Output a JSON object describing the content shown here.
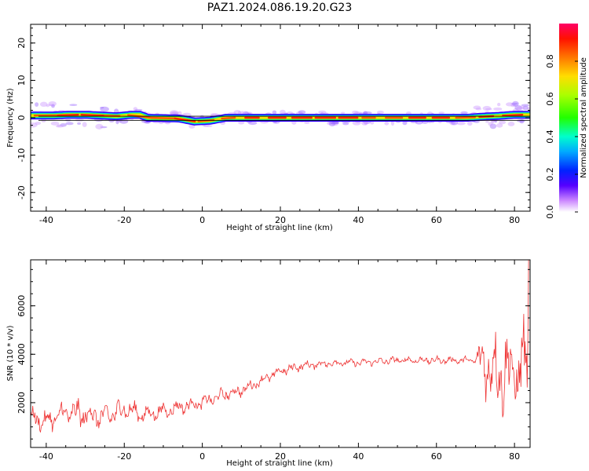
{
  "title": "PAZ1.2024.086.19.20.G23",
  "chart_data": [
    {
      "type": "heatmap",
      "xlabel": "Height of straight line (km)",
      "ylabel": "Frequency (Hz)",
      "xlim": [
        -44,
        84
      ],
      "ylim": [
        -25,
        25
      ],
      "xticks": [
        "-40",
        "-20",
        "0",
        "20",
        "40",
        "60",
        "80"
      ],
      "yticks": [
        "-20",
        "-10",
        "0",
        "10",
        "20"
      ],
      "colorbar": {
        "label": "Normalized spectral amplitude",
        "ticks": [
          "0.0",
          "0.2",
          "0.4",
          "0.6",
          "0.8"
        ],
        "range": [
          0,
          1
        ]
      },
      "ridge": {
        "x": [
          -42,
          -38,
          -34,
          -30,
          -26,
          -22,
          -18,
          -16,
          -14,
          -10,
          -6,
          -2,
          2,
          6,
          10,
          20,
          30,
          40,
          50,
          60,
          68,
          72,
          76,
          80,
          84
        ],
        "freq": [
          0.6,
          0.6,
          0.8,
          0.8,
          0.6,
          0.4,
          0.8,
          0.8,
          0.0,
          -0.1,
          -0.2,
          -1.0,
          -0.8,
          0.0,
          0.0,
          0.0,
          0.0,
          0.0,
          0.0,
          0.0,
          0.0,
          0.3,
          0.5,
          0.8,
          0.8
        ]
      },
      "reference_lines_hz": [
        0.4,
        -0.7
      ]
    },
    {
      "type": "line",
      "xlabel": "Height of straight line (km)",
      "ylabel": "SNR (10 * v/v)",
      "xlim": [
        -44,
        84
      ],
      "ylim": [
        150,
        7900
      ],
      "xticks": [
        "-40",
        "-20",
        "0",
        "20",
        "40",
        "60",
        "80"
      ],
      "yticks": [
        "2000",
        "4000",
        "6000"
      ],
      "color": "#ee3333",
      "trend": {
        "x": [
          -44,
          -40,
          -35,
          -30,
          -25,
          -20,
          -15,
          -10,
          -5,
          0,
          5,
          10,
          15,
          20,
          25,
          30,
          35,
          40,
          45,
          50,
          55,
          60,
          65,
          70,
          72,
          75,
          78,
          80,
          82,
          84
        ],
        "y": [
          1400,
          1200,
          1600,
          1500,
          1400,
          1750,
          1500,
          1650,
          1850,
          2000,
          2300,
          2500,
          2900,
          3300,
          3500,
          3600,
          3650,
          3650,
          3700,
          3750,
          3750,
          3750,
          3750,
          3750,
          3700,
          3300,
          3300,
          3300,
          3400,
          4000
        ]
      },
      "noise_amplitude": {
        "x": [
          -44,
          -30,
          -20,
          0,
          20,
          40,
          70,
          71,
          74,
          80,
          84
        ],
        "y": [
          450,
          650,
          450,
          300,
          220,
          160,
          160,
          900,
          1800,
          1800,
          2000
        ]
      }
    }
  ]
}
